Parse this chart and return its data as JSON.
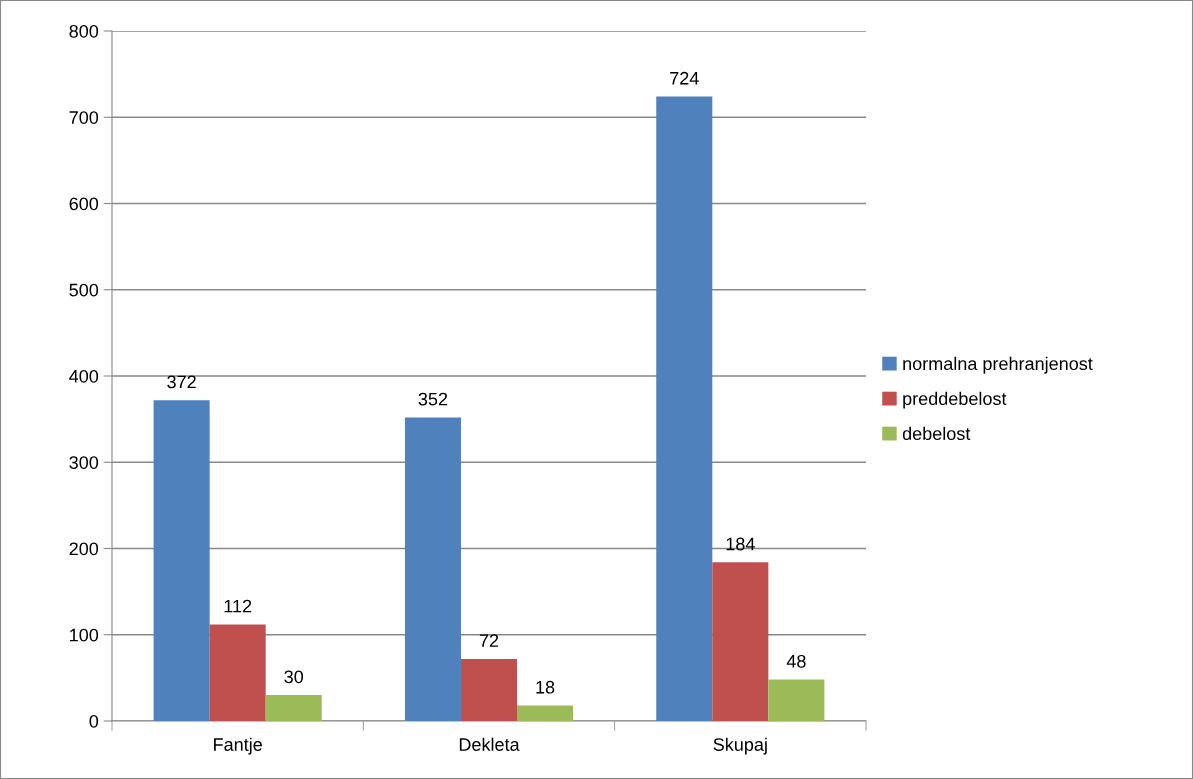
{
  "chart_data": {
    "type": "bar",
    "categories": [
      "Fantje",
      "Dekleta",
      "Skupaj"
    ],
    "series": [
      {
        "name": "normalna prehranjenost",
        "color": "#4f81bd",
        "values": [
          372,
          352,
          724
        ]
      },
      {
        "name": "preddebelost",
        "color": "#c0504d",
        "values": [
          112,
          72,
          184
        ]
      },
      {
        "name": "debelost",
        "color": "#9bbb59",
        "values": [
          30,
          18,
          48
        ]
      }
    ],
    "ylim": [
      0,
      800
    ],
    "yticks": [
      0,
      100,
      200,
      300,
      400,
      500,
      600,
      700,
      800
    ],
    "grid": "y",
    "legend": "right",
    "data_labels": true
  }
}
